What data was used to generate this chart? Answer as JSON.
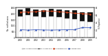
{
  "years": [
    2000,
    2001,
    2002,
    2003,
    2004,
    2005,
    2006,
    2007,
    2008,
    2009
  ],
  "sg_born": [
    1800,
    1900,
    1750,
    1700,
    1750,
    1700,
    1600,
    1550,
    1400,
    1350
  ],
  "foreign_born": [
    520,
    540,
    580,
    600,
    630,
    660,
    680,
    710,
    730,
    760
  ],
  "pct_sg_born": [
    68.0,
    68.5,
    69.5,
    71.4,
    70.5,
    69.2,
    67.4,
    65.1,
    64.3,
    62.4
  ],
  "pct_foreign_born": [
    21.5,
    20.5,
    21.4,
    20.8,
    20.5,
    21.0,
    21.4,
    21.8,
    27.4,
    27.1
  ],
  "bar_color_sg": "#ffffff",
  "bar_color_foreign": "#111111",
  "line_color_sg": "#d9441c",
  "line_color_foreign": "#3355bb",
  "ylim_left": [
    0,
    2500
  ],
  "ylim_right": [
    0,
    80
  ],
  "yticks_left": [
    0,
    500,
    1000,
    1500,
    2000,
    2500
  ],
  "yticks_right": [
    0,
    20,
    40,
    60,
    80
  ],
  "bg_color": "#ffffff",
  "bar_edge_color": "#888888",
  "ylabel_left": "No. notified cases",
  "ylabel_right": "% Proportion"
}
